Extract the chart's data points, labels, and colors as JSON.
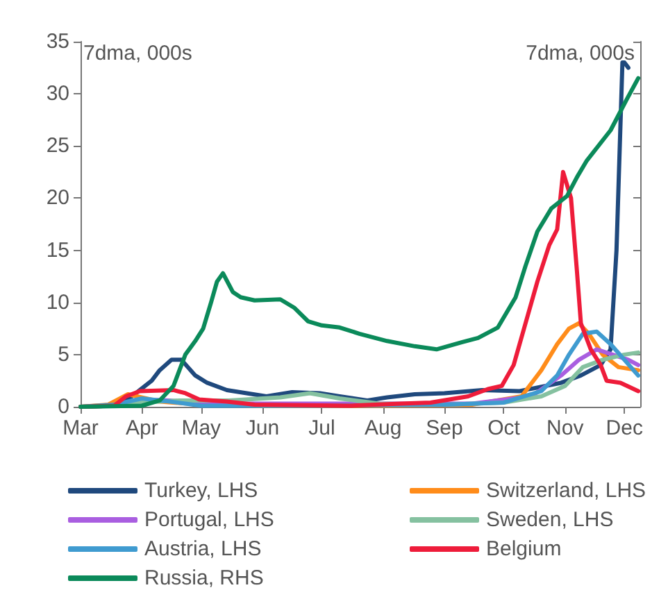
{
  "chart_data": {
    "type": "line",
    "ylabel": "7dma, 000s",
    "y2label": "7dma, 000s",
    "xlim": [
      "--03-01",
      "--12-09"
    ],
    "xticks": [
      {
        "value": "--03-01",
        "label": "Mar"
      },
      {
        "value": "--04-01",
        "label": "Apr"
      },
      {
        "value": "--05-01",
        "label": "May"
      },
      {
        "value": "--06-01",
        "label": "Jun"
      },
      {
        "value": "--07-01",
        "label": "Jul"
      },
      {
        "value": "--08-01",
        "label": "Aug"
      },
      {
        "value": "--09-01",
        "label": "Sep"
      },
      {
        "value": "--10-01",
        "label": "Oct"
      },
      {
        "value": "--11-01",
        "label": "Nov"
      },
      {
        "value": "--12-01",
        "label": "Dec"
      }
    ],
    "ylim": [
      0,
      35
    ],
    "yticks": [
      0,
      5,
      10,
      15,
      20,
      25,
      30,
      35
    ],
    "grid": false,
    "legend": "bottom",
    "line_style": "solid",
    "marker": "none",
    "series": [
      {
        "name": "Turkey, LHS",
        "color": "#1f497d",
        "x": [
          "--03-01",
          "--03-18",
          "--03-27",
          "--04-06",
          "--04-10",
          "--04-16",
          "--04-21",
          "--04-28",
          "--05-04",
          "--05-14",
          "--05-24",
          "--06-03",
          "--06-16",
          "--06-30",
          "--07-10",
          "--07-24",
          "--08-03",
          "--08-17",
          "--09-01",
          "--09-20",
          "--10-09",
          "--10-30",
          "--11-09",
          "--11-19",
          "--11-24",
          "--11-27",
          "--11-30",
          "--12-01",
          "--12-03"
        ],
        "values": [
          0,
          0.1,
          1,
          2.5,
          3.5,
          4.5,
          4.5,
          3,
          2.3,
          1.6,
          1.3,
          1,
          1.4,
          1.3,
          1,
          0.6,
          0.9,
          1.2,
          1.3,
          1.6,
          1.5,
          2.3,
          3,
          4,
          5.5,
          15,
          33,
          33,
          32.5
        ]
      },
      {
        "name": "Switzerland, LHS",
        "color": "#ff8c1a",
        "x": [
          "--03-01",
          "--03-15",
          "--03-25",
          "--04-10",
          "--05-01",
          "--06-01",
          "--08-01",
          "--09-15",
          "--10-10",
          "--10-20",
          "--10-28",
          "--11-03",
          "--11-08",
          "--11-13",
          "--11-20",
          "--11-28",
          "--12-08"
        ],
        "values": [
          0,
          0.2,
          1.2,
          0.5,
          0.2,
          0.1,
          0.1,
          0.2,
          1,
          3.5,
          6,
          7.5,
          8,
          7,
          5,
          3.8,
          3.5
        ]
      },
      {
        "name": "Portugal, LHS",
        "color": "#a95ee0",
        "x": [
          "--04-01",
          "--04-15",
          "--05-01",
          "--06-15",
          "--08-01",
          "--09-15",
          "--10-15",
          "--10-30",
          "--11-08",
          "--11-17",
          "--11-25",
          "--12-03",
          "--12-08"
        ],
        "values": [
          0.7,
          0.6,
          0.3,
          0.3,
          0.3,
          0.3,
          1,
          3,
          4.5,
          5.5,
          5,
          4.5,
          4
        ]
      },
      {
        "name": "Sweden, LHS",
        "color": "#85c1a0",
        "x": [
          "--03-01",
          "--03-20",
          "--04-01",
          "--04-20",
          "--05-15",
          "--06-10",
          "--06-25",
          "--07-10",
          "--07-30",
          "--09-01",
          "--10-01",
          "--10-20",
          "--11-01",
          "--11-10",
          "--11-20",
          "--12-01",
          "--12-08"
        ],
        "values": [
          0,
          0.1,
          0.4,
          0.6,
          0.6,
          0.9,
          1.3,
          0.8,
          0.3,
          0.2,
          0.4,
          1,
          2,
          3.8,
          4.5,
          5,
          5.2
        ]
      },
      {
        "name": "Austria, LHS",
        "color": "#3f9bd0",
        "x": [
          "--03-01",
          "--03-18",
          "--04-01",
          "--04-15",
          "--05-01",
          "--07-01",
          "--09-01",
          "--10-01",
          "--10-20",
          "--10-28",
          "--11-03",
          "--11-10",
          "--11-17",
          "--11-24",
          "--12-01",
          "--12-08"
        ],
        "values": [
          0,
          0.2,
          0.8,
          0.5,
          0.1,
          0.1,
          0.2,
          0.4,
          1.5,
          3,
          5,
          7,
          7.2,
          6,
          4.5,
          3
        ]
      },
      {
        "name": "Belgium",
        "color": "#ee1c3a",
        "x": [
          "--03-01",
          "--03-18",
          "--03-24",
          "--03-31",
          "--04-17",
          "--04-23",
          "--04-30",
          "--05-14",
          "--05-28",
          "--07-15",
          "--08-10",
          "--08-25",
          "--09-13",
          "--09-23",
          "--09-30",
          "--10-06",
          "--10-12",
          "--10-18",
          "--10-24",
          "--10-28",
          "--10-31",
          "--11-04",
          "--11-07",
          "--11-09",
          "--11-14",
          "--11-19",
          "--11-22",
          "--11-29",
          "--12-08"
        ],
        "values": [
          0,
          0.1,
          1,
          1.5,
          1.6,
          1.3,
          0.7,
          0.5,
          0.2,
          0.1,
          0.3,
          0.4,
          1,
          1.7,
          2,
          4,
          8,
          12,
          15.5,
          17,
          22.5,
          20,
          13,
          8,
          5.5,
          4,
          2.5,
          2.3,
          1.5
        ]
      },
      {
        "name": "Russia, RHS",
        "color": "#0b8a5a",
        "x": [
          "--03-01",
          "--04-01",
          "--04-10",
          "--04-17",
          "--04-23",
          "--04-28",
          "--05-02",
          "--05-06",
          "--05-09",
          "--05-12",
          "--05-17",
          "--05-21",
          "--05-28",
          "--06-10",
          "--06-17",
          "--06-24",
          "--07-01",
          "--07-10",
          "--07-20",
          "--08-03",
          "--08-17",
          "--08-28",
          "--09-10",
          "--09-18",
          "--09-28",
          "--10-07",
          "--10-12",
          "--10-18",
          "--10-25",
          "--11-02",
          "--11-07",
          "--11-12",
          "--11-24",
          "--12-02",
          "--12-08"
        ],
        "values": [
          0,
          0.1,
          0.6,
          2,
          5,
          6.3,
          7.5,
          10,
          12,
          12.8,
          11,
          10.5,
          10.2,
          10.3,
          9.5,
          8.2,
          7.8,
          7.6,
          7,
          6.3,
          5.8,
          5.5,
          6.2,
          6.6,
          7.6,
          10.5,
          13.5,
          16.8,
          19,
          20.2,
          22,
          23.6,
          26.5,
          29.4,
          31.5
        ]
      }
    ]
  }
}
